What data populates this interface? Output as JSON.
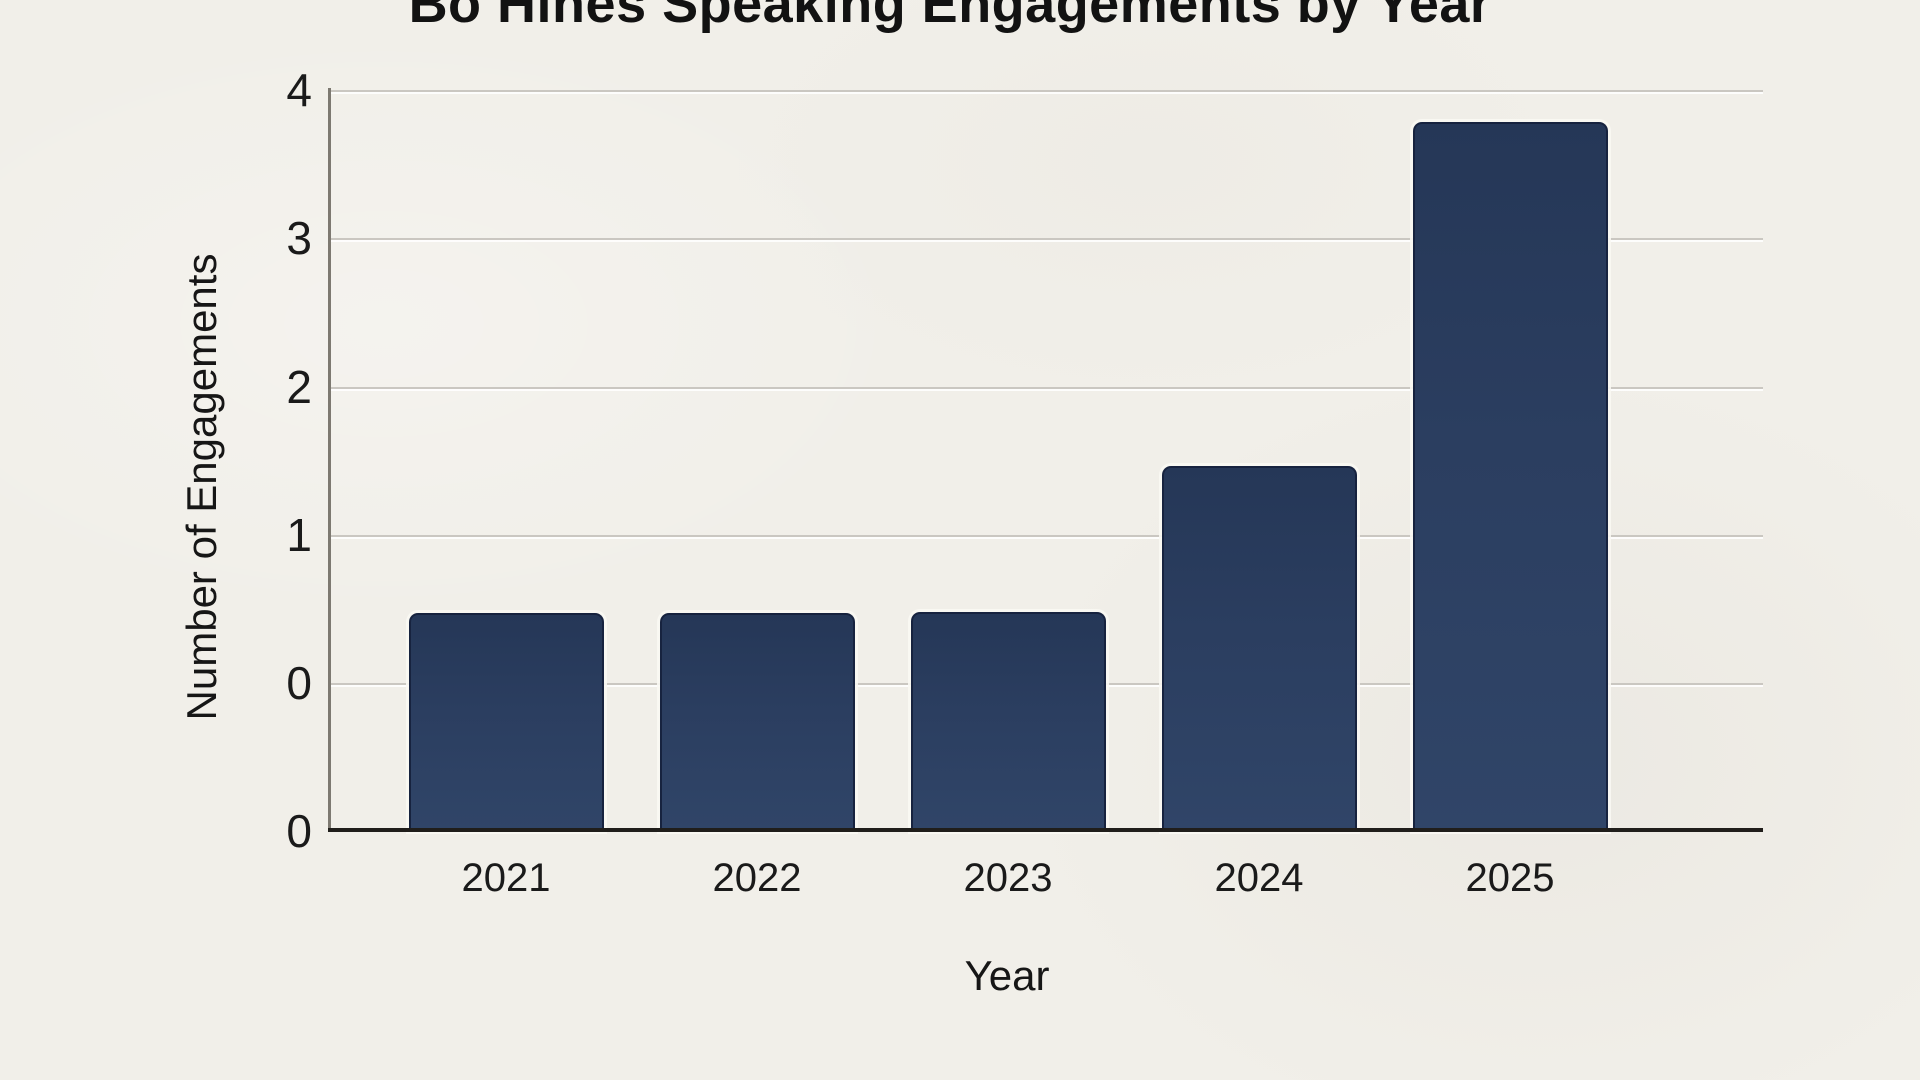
{
  "title": "Bo Hines Speaking Engagements by Year",
  "chart_data": {
    "type": "bar",
    "title": "Bo Hines Speaking Engagements by Year",
    "xlabel": "Year",
    "ylabel": "Number of Engagements",
    "categories": [
      "2021",
      "2022",
      "2023",
      "2024",
      "2025"
    ],
    "values": [
      0.47,
      0.47,
      0.48,
      1.46,
      3.78
    ],
    "ylim": [
      0,
      4
    ],
    "ytick_labels_top_to_bottom": [
      "4",
      "3",
      "2",
      "1",
      "0",
      "0"
    ],
    "axis_note": "Y axis shows six evenly spaced ticks labeled 4,3,2,1,0,0 — the '0' label is duplicated at the baseline one grid unit below the 0 gridline; bars rise from the baseline, so each bar spans one extra grid unit below the labeled 0 line. Values above are read against the labeled 0 gridline.",
    "grid": "horizontal gridlines on, at ticks 0-4",
    "legend": "none",
    "series_count": 1,
    "colors": {
      "bar_fill": "#2b3e60",
      "bar_border": "#17233f",
      "background": "#f1efe9",
      "gridline": "#cac7c1",
      "baseline": "#201e1b",
      "text": "#1a1a1a"
    }
  }
}
